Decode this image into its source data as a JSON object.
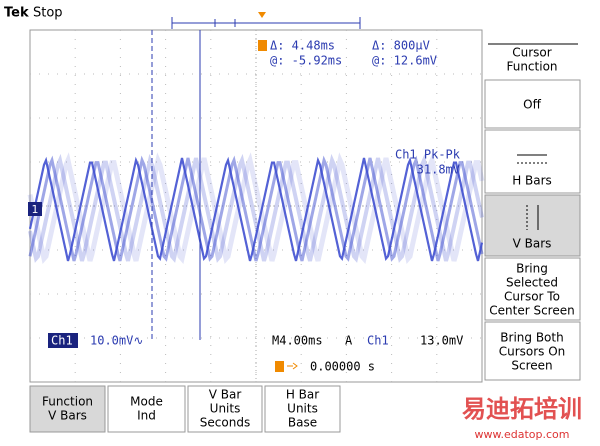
{
  "header": {
    "brand": "Tek",
    "status": "Stop"
  },
  "readouts": {
    "time_delta": "Δ:  4.48ms",
    "time_at": "@: -5.92ms",
    "volt_delta": "Δ:  800μV",
    "volt_at": "@:  12.6mV"
  },
  "measurement": {
    "name": "Ch1 Pk-Pk",
    "value": "31.8mV"
  },
  "channel_marker": "1",
  "status_bar": {
    "channel": "Ch1",
    "scale": "10.0mV∿",
    "timebase": "M4.00ms",
    "mode": "A",
    "trigger_source": "Ch1",
    "trigger_level": "13.0mV",
    "trigger_position": "0.00000 s"
  },
  "side_menu": {
    "title": [
      "Cursor",
      "Function"
    ],
    "items": [
      [
        "Off"
      ],
      [
        "H Bars"
      ],
      [
        "V Bars"
      ],
      [
        "Bring",
        "Selected",
        "Cursor To",
        "Center Screen"
      ],
      [
        "Bring Both",
        "Cursors On",
        "Screen"
      ]
    ]
  },
  "bottom_menu": [
    [
      "Function",
      "V Bars"
    ],
    [
      "Mode",
      "Ind"
    ],
    [
      "V Bar",
      "Units",
      "Seconds"
    ],
    [
      "H Bar",
      "Units",
      "Base"
    ]
  ],
  "watermark": {
    "title": "易迪拓培训",
    "url": "www.edatop.com"
  }
}
